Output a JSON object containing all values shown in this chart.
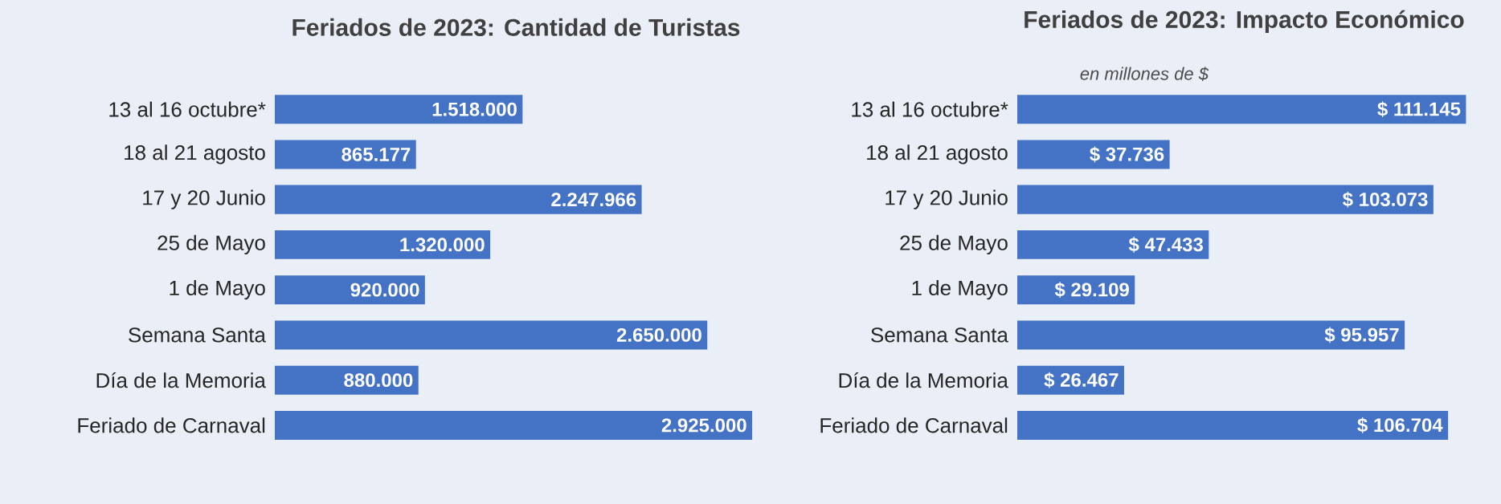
{
  "chart_data": [
    {
      "type": "bar",
      "orientation": "horizontal",
      "title": "Feriados de 2023: Cantidad de Turistas",
      "categories": [
        "13 al 16 octubre*",
        "18 al 21 agosto",
        "17 y 20 Junio",
        "25 de Mayo",
        "1 de Mayo",
        "Semana Santa",
        "Día de la Memoria",
        "Feriado de Carnaval"
      ],
      "values": [
        1518000,
        865177,
        2247966,
        1320000,
        920000,
        2650000,
        880000,
        2925000
      ],
      "value_labels": [
        "1.518.000",
        "865.177",
        "2.247.966",
        "1.320.000",
        "920.000",
        "2.650.000",
        "880.000",
        "2.925.000"
      ],
      "color": "#4472c4",
      "tick_labels": "y"
    },
    {
      "type": "bar",
      "orientation": "horizontal",
      "title": "Feriados de 2023: Impacto Económico",
      "subtitle": "en millones de $",
      "categories": [
        "13 al 16 octubre*",
        "18 al 21 agosto",
        "17 y 20 Junio",
        "25 de Mayo",
        "1 de Mayo",
        "Semana Santa",
        "Día de la Memoria",
        "Feriado de Carnaval"
      ],
      "values": [
        111145,
        37736,
        103073,
        47433,
        29109,
        95957,
        26467,
        106704
      ],
      "value_labels": [
        "$ 111.145",
        "$ 37.736",
        "$ 103.073",
        "$ 47.433",
        "$ 29.109",
        "$ 95.957",
        "$ 26.467",
        "$ 106.704"
      ],
      "color": "#4472c4",
      "tick_labels": "y"
    }
  ]
}
